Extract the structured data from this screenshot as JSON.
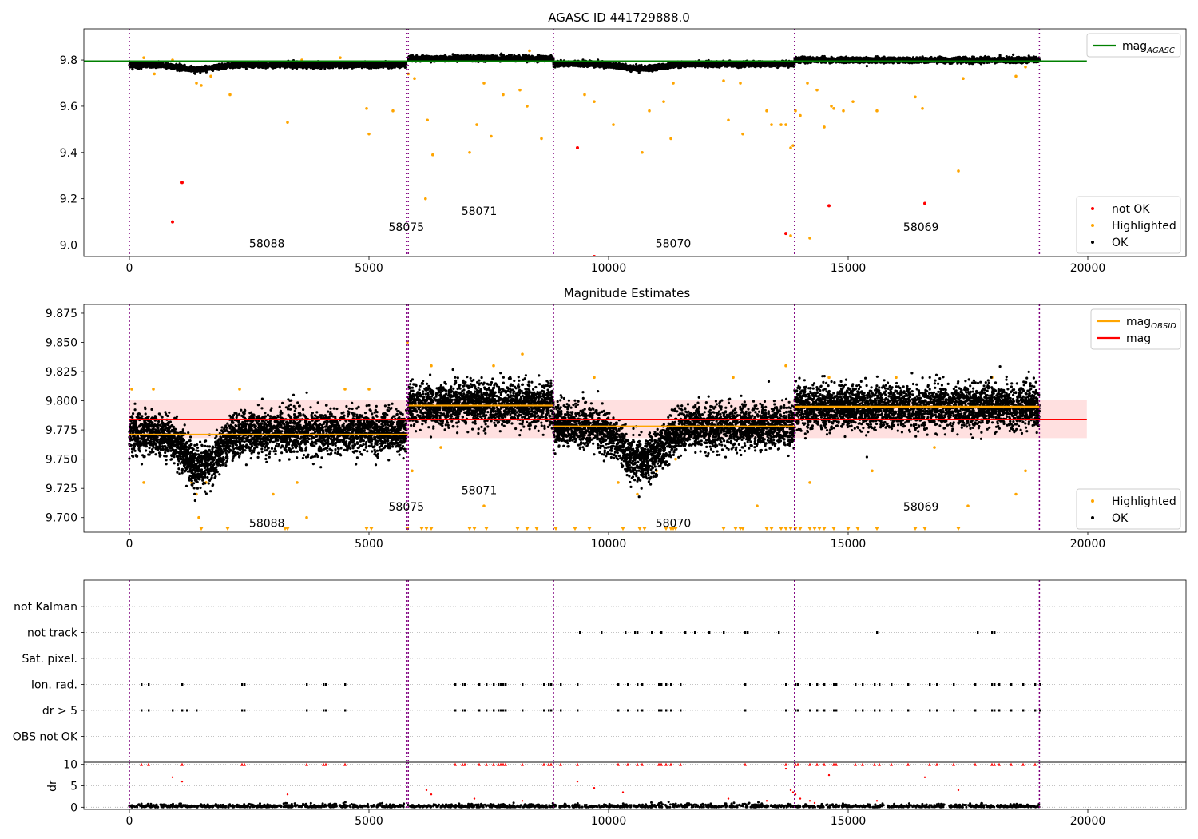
{
  "chart_data": [
    {
      "type": "scatter",
      "title": "AGASC ID 441729888.0",
      "xlim": [
        -950,
        22050
      ],
      "ylim": [
        8.95,
        9.935
      ],
      "xticks": [
        0,
        5000,
        10000,
        15000,
        20000
      ],
      "yticks": [
        9.0,
        9.2,
        9.4,
        9.6,
        9.8
      ],
      "ytick_labels": [
        "9.0",
        "9.2",
        "9.4",
        "9.6",
        "9.8"
      ],
      "obsid_boundaries": [
        0,
        5780,
        5820,
        8850,
        13880,
        18990
      ],
      "obsid_labels": [
        {
          "text": "58088",
          "x": 2870,
          "y": 8.99
        },
        {
          "text": "58075",
          "x": 5780,
          "y": 9.06
        },
        {
          "text": "58071",
          "x": 7300,
          "y": 9.13
        },
        {
          "text": "58070",
          "x": 11350,
          "y": 8.99
        },
        {
          "text": "58069",
          "x": 16520,
          "y": 9.06
        }
      ],
      "lines": [
        {
          "name": "mag",
          "name_sub": "AGASC",
          "color": "#008000",
          "y": 9.795,
          "x": [
            -950,
            19980
          ]
        }
      ],
      "band_segments": [
        {
          "x": [
            0,
            5780
          ],
          "center": 9.779,
          "amp": 0.012,
          "dip": {
            "at": 1400,
            "width": 700,
            "depth": 0.02
          }
        },
        {
          "x": [
            5820,
            8850
          ],
          "center": 9.807,
          "amp": 0.012
        },
        {
          "x": [
            8850,
            13880
          ],
          "center": 9.783,
          "amp": 0.012,
          "dip": {
            "at": 10700,
            "width": 800,
            "depth": 0.02
          }
        },
        {
          "x": [
            13880,
            18990
          ],
          "center": 9.8,
          "amp": 0.012
        }
      ],
      "highlighted_points": [
        [
          300,
          9.81
        ],
        [
          520,
          9.74
        ],
        [
          900,
          9.8
        ],
        [
          1400,
          9.7
        ],
        [
          1500,
          9.69
        ],
        [
          1700,
          9.73
        ],
        [
          2100,
          9.65
        ],
        [
          3000,
          9.79
        ],
        [
          3300,
          9.53
        ],
        [
          3600,
          9.8
        ],
        [
          4400,
          9.81
        ],
        [
          4950,
          9.59
        ],
        [
          5000,
          9.48
        ],
        [
          5500,
          9.58
        ],
        [
          5820,
          9.74
        ],
        [
          5950,
          9.72
        ],
        [
          6180,
          9.2
        ],
        [
          6220,
          9.54
        ],
        [
          6330,
          9.39
        ],
        [
          7100,
          9.4
        ],
        [
          7250,
          9.52
        ],
        [
          7400,
          9.7
        ],
        [
          7550,
          9.47
        ],
        [
          7800,
          9.65
        ],
        [
          8150,
          9.67
        ],
        [
          8300,
          9.6
        ],
        [
          8350,
          9.84
        ],
        [
          8600,
          9.46
        ],
        [
          9500,
          9.65
        ],
        [
          9700,
          9.62
        ],
        [
          10100,
          9.52
        ],
        [
          10700,
          9.4
        ],
        [
          10850,
          9.58
        ],
        [
          11150,
          9.62
        ],
        [
          11350,
          9.7
        ],
        [
          11300,
          9.46
        ],
        [
          12400,
          9.71
        ],
        [
          12500,
          9.54
        ],
        [
          12750,
          9.7
        ],
        [
          12800,
          9.48
        ],
        [
          13300,
          9.58
        ],
        [
          13400,
          9.52
        ],
        [
          13600,
          9.52
        ],
        [
          13700,
          9.52
        ],
        [
          13800,
          9.42
        ],
        [
          13850,
          9.43
        ],
        [
          13900,
          9.58
        ],
        [
          14000,
          9.56
        ],
        [
          14150,
          9.7
        ],
        [
          14350,
          9.67
        ],
        [
          14500,
          9.51
        ],
        [
          14650,
          9.6
        ],
        [
          14700,
          9.59
        ],
        [
          14900,
          9.58
        ],
        [
          15100,
          9.62
        ],
        [
          15600,
          9.58
        ],
        [
          16300,
          9.79
        ],
        [
          16400,
          9.64
        ],
        [
          16550,
          9.59
        ],
        [
          17300,
          9.32
        ],
        [
          17400,
          9.72
        ],
        [
          18500,
          9.73
        ],
        [
          18700,
          9.77
        ],
        [
          14200,
          9.03
        ],
        [
          13800,
          9.04
        ]
      ],
      "not_ok_points": [
        [
          900,
          9.1
        ],
        [
          1100,
          9.27
        ],
        [
          9350,
          9.42
        ],
        [
          9700,
          8.95
        ],
        [
          13700,
          9.05
        ],
        [
          14600,
          9.17
        ],
        [
          16600,
          9.18
        ]
      ],
      "legend_top": {
        "entries": [
          {
            "label": "mag",
            "sub": "AGASC",
            "color": "#008000",
            "kind": "line"
          }
        ],
        "loc": "upper right"
      },
      "legend_bottom": {
        "entries": [
          {
            "label": "not OK",
            "color": "#ff0000",
            "kind": "dot"
          },
          {
            "label": "Highlighted",
            "color": "#ffa500",
            "kind": "dot"
          },
          {
            "label": "OK",
            "color": "#000000",
            "kind": "dot"
          }
        ],
        "loc": "lower right"
      }
    },
    {
      "type": "scatter",
      "title": "Magnitude Estimates",
      "xlim": [
        -950,
        22050
      ],
      "ylim": [
        9.6875,
        9.8825
      ],
      "xticks": [
        0,
        5000,
        10000,
        15000,
        20000
      ],
      "yticks": [
        9.7,
        9.725,
        9.75,
        9.775,
        9.8,
        9.825,
        9.85,
        9.875
      ],
      "ytick_labels": [
        "9.700",
        "9.725",
        "9.750",
        "9.775",
        "9.800",
        "9.825",
        "9.850",
        "9.875"
      ],
      "obsid_boundaries": [
        0,
        5780,
        5820,
        8850,
        13880,
        18990
      ],
      "obsid_labels": [
        {
          "text": "58088",
          "x": 2870,
          "y": 9.692
        },
        {
          "text": "58075",
          "x": 5780,
          "y": 9.706
        },
        {
          "text": "58071",
          "x": 7300,
          "y": 9.72
        },
        {
          "text": "58070",
          "x": 11350,
          "y": 9.692
        },
        {
          "text": "58069",
          "x": 16520,
          "y": 9.706
        }
      ],
      "mag_line": {
        "name": "mag",
        "color": "#ff0000",
        "y": 9.784,
        "x": [
          0,
          19980
        ],
        "band": [
          9.768,
          9.801
        ]
      },
      "obsid_means": [
        {
          "x": [
            0,
            5820
          ],
          "y": 9.771
        },
        {
          "x": [
            5820,
            8850
          ],
          "y": 9.796
        },
        {
          "x": [
            8850,
            13880
          ],
          "y": 9.778
        },
        {
          "x": [
            13880,
            18990
          ],
          "y": 9.795
        }
      ],
      "band_segments": [
        {
          "x": [
            0,
            5780
          ],
          "center": 9.773,
          "amp": 0.02,
          "dip": {
            "at": 1500,
            "width": 700,
            "depth": 0.03
          }
        },
        {
          "x": [
            5820,
            8850
          ],
          "center": 9.797,
          "amp": 0.02
        },
        {
          "x": [
            8850,
            13880
          ],
          "center": 9.778,
          "amp": 0.02,
          "dip": {
            "at": 10700,
            "width": 800,
            "depth": 0.03
          }
        },
        {
          "x": [
            13880,
            18990
          ],
          "center": 9.795,
          "amp": 0.02
        }
      ],
      "highlighted_points": [
        [
          50,
          9.81
        ],
        [
          300,
          9.73
        ],
        [
          500,
          9.81
        ],
        [
          1300,
          9.73
        ],
        [
          1400,
          9.72
        ],
        [
          1450,
          9.7
        ],
        [
          1600,
          9.73
        ],
        [
          2300,
          9.81
        ],
        [
          3000,
          9.72
        ],
        [
          3500,
          9.73
        ],
        [
          3700,
          9.7
        ],
        [
          4500,
          9.81
        ],
        [
          5000,
          9.81
        ],
        [
          5800,
          9.85
        ],
        [
          5900,
          9.74
        ],
        [
          6300,
          9.83
        ],
        [
          6500,
          9.76
        ],
        [
          7400,
          9.71
        ],
        [
          7600,
          9.83
        ],
        [
          8200,
          9.84
        ],
        [
          9700,
          9.82
        ],
        [
          10200,
          9.73
        ],
        [
          10600,
          9.72
        ],
        [
          11000,
          9.74
        ],
        [
          11400,
          9.75
        ],
        [
          12600,
          9.82
        ],
        [
          13100,
          9.71
        ],
        [
          13700,
          9.83
        ],
        [
          14200,
          9.73
        ],
        [
          14600,
          9.82
        ],
        [
          15500,
          9.74
        ],
        [
          16000,
          9.82
        ],
        [
          16800,
          9.76
        ],
        [
          17500,
          9.71
        ],
        [
          18000,
          9.82
        ],
        [
          18500,
          9.72
        ],
        [
          18700,
          9.74
        ]
      ],
      "triangle_x": [
        1500,
        2050,
        3250,
        3300,
        3300,
        4950,
        5050,
        5800,
        6100,
        6200,
        6300,
        7100,
        7200,
        7450,
        8100,
        8300,
        8500,
        8900,
        9300,
        9600,
        10300,
        10650,
        10750,
        11200,
        11300,
        11350,
        11400,
        12400,
        12650,
        12750,
        12800,
        13300,
        13400,
        13600,
        13700,
        13800,
        13900,
        14000,
        14200,
        14300,
        14400,
        14500,
        14700,
        15000,
        15200,
        15600,
        16400,
        16600,
        17300
      ],
      "legend_top": {
        "entries": [
          {
            "label": "mag",
            "sub": "OBSID",
            "color": "#ffa500",
            "kind": "line"
          },
          {
            "label": "mag",
            "color": "#ff0000",
            "kind": "line"
          }
        ],
        "loc": "upper right"
      },
      "legend_bottom": {
        "entries": [
          {
            "label": "Highlighted",
            "color": "#ffa500",
            "kind": "dot"
          },
          {
            "label": "OK",
            "color": "#000000",
            "kind": "dot"
          }
        ],
        "loc": "lower right"
      }
    },
    {
      "type": "scatter",
      "title": "",
      "xlim": [
        -950,
        22050
      ],
      "categories": [
        "not Kalman",
        "not track",
        "Sat. pixel.",
        "Ion. rad.",
        "dr > 5",
        "OBS not OK"
      ],
      "obsid_boundaries": [
        0,
        5780,
        5820,
        8850,
        13880,
        18990
      ],
      "flag_points": {
        "not track": [
          9400,
          9850,
          10350,
          10550,
          10600,
          10900,
          11100,
          11600,
          11800,
          12100,
          12400,
          12850,
          12900,
          13550,
          15600,
          17700,
          18000,
          18050
        ],
        "Ion. rad.": [
          250,
          400,
          1100,
          2350,
          2400,
          3700,
          4050,
          4100,
          4500,
          6800,
          6950,
          7000,
          7300,
          7450,
          7600,
          7700,
          7750,
          7800,
          7850,
          8200,
          8650,
          8750,
          8800,
          9000,
          9350,
          10200,
          10400,
          10600,
          10700,
          11050,
          11100,
          11200,
          11300,
          11500,
          12850,
          13700,
          13900,
          13950,
          14200,
          14350,
          14500,
          14700,
          14750,
          15150,
          15300,
          15550,
          15650,
          15900,
          16250,
          16700,
          16850,
          17200,
          17650,
          18000,
          18050,
          18150,
          18400,
          18650,
          18900,
          19000
        ],
        "dr > 5": [
          250,
          400,
          900,
          1100,
          1200,
          1400,
          2350,
          2400,
          3700,
          4050,
          4100,
          4500,
          6800,
          6950,
          7000,
          7300,
          7450,
          7600,
          7700,
          7750,
          7800,
          7850,
          8200,
          8650,
          8750,
          8800,
          9000,
          9350,
          10200,
          10400,
          10600,
          10700,
          11050,
          11100,
          11200,
          11300,
          11500,
          12850,
          13700,
          13900,
          13950,
          14200,
          14350,
          14500,
          14700,
          14750,
          15150,
          15300,
          15550,
          15650,
          15900,
          16250,
          16700,
          16850,
          17200,
          17650,
          18000,
          18050,
          18150,
          18400,
          18650,
          18900,
          19000
        ]
      }
    },
    {
      "type": "scatter",
      "ylabel": "dr",
      "xlim": [
        -950,
        22050
      ],
      "ylim": [
        -0.5,
        10.5
      ],
      "xticks": [
        0,
        5000,
        10000,
        15000,
        20000
      ],
      "yticks": [
        0,
        5,
        10
      ],
      "obsid_boundaries": [
        0,
        5780,
        5820,
        8850,
        13880,
        18990
      ],
      "dr_over_x": [
        250,
        400,
        1100,
        2350,
        2400,
        3700,
        4050,
        4100,
        4500,
        6800,
        6950,
        7000,
        7300,
        7450,
        7600,
        7700,
        7750,
        7800,
        7850,
        8200,
        8650,
        8750,
        8800,
        9000,
        9350,
        10200,
        10400,
        10600,
        10700,
        11050,
        11100,
        11200,
        11300,
        11500,
        12850,
        13700,
        13900,
        13950,
        14200,
        14350,
        14500,
        14700,
        14750,
        15150,
        15300,
        15550,
        15650,
        15900,
        16250,
        16700,
        16850,
        17200,
        17650,
        18000,
        18050,
        18150,
        18400,
        18650,
        18900
      ],
      "dr_mid_points": [
        [
          900,
          7
        ],
        [
          1100,
          6
        ],
        [
          3300,
          3
        ],
        [
          6200,
          4
        ],
        [
          6300,
          3
        ],
        [
          7200,
          2
        ],
        [
          8200,
          1.5
        ],
        [
          9350,
          6
        ],
        [
          9700,
          4.5
        ],
        [
          10300,
          3.5
        ],
        [
          12500,
          2
        ],
        [
          13300,
          1.5
        ],
        [
          13700,
          9
        ],
        [
          13800,
          4
        ],
        [
          13850,
          3.5
        ],
        [
          13900,
          3
        ],
        [
          14000,
          2
        ],
        [
          14200,
          1.5
        ],
        [
          14300,
          1
        ],
        [
          14600,
          7.5
        ],
        [
          15600,
          1.5
        ],
        [
          16600,
          7
        ],
        [
          17300,
          4
        ]
      ]
    }
  ]
}
